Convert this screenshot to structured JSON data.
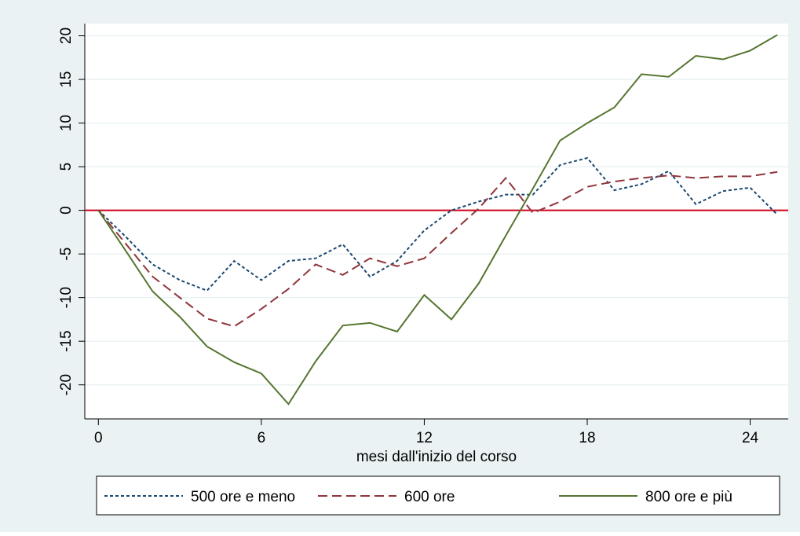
{
  "chart_data": {
    "type": "line",
    "x_label": "mesi dall'inizio del corso",
    "x": [
      0,
      1,
      2,
      3,
      4,
      5,
      6,
      7,
      8,
      9,
      10,
      11,
      12,
      13,
      14,
      15,
      16,
      17,
      18,
      19,
      20,
      21,
      22,
      23,
      24,
      25
    ],
    "series": [
      {
        "name": "500 ore e meno",
        "color": "#1a476f",
        "style": "dotted",
        "values": [
          0,
          -3,
          -6.2,
          -8,
          -9.2,
          -5.8,
          -8,
          -5.8,
          -5.5,
          -3.9,
          -7.6,
          -5.8,
          -2.3,
          0,
          1,
          1.8,
          1.8,
          5.2,
          6,
          2.3,
          3,
          4.5,
          0.7,
          2.2,
          2.6,
          -0.5
        ]
      },
      {
        "name": "600 ore",
        "color": "#90353b",
        "style": "dashed",
        "values": [
          0,
          -3.8,
          -7.6,
          -10,
          -12.4,
          -13.3,
          -11.3,
          -9,
          -6.2,
          -7.4,
          -5.5,
          -6.4,
          -5.5,
          -2.6,
          0.2,
          3.7,
          -0.3,
          1,
          2.7,
          3.3,
          3.7,
          4,
          3.7,
          3.9,
          3.9,
          4.4
        ]
      },
      {
        "name": "800 ore e più",
        "color": "#55752f",
        "style": "solid",
        "values": [
          0,
          -4.6,
          -9.3,
          -12.2,
          -15.6,
          -17.4,
          -18.7,
          -22.2,
          -17.3,
          -13.2,
          -12.9,
          -13.9,
          -9.7,
          -12.5,
          -8.4,
          -2.9,
          2.5,
          8,
          10,
          11.8,
          15.6,
          15.3,
          17.7,
          17.3,
          18.3,
          20.1
        ]
      }
    ],
    "xlim": [
      -0.5,
      25.4
    ],
    "xticks": [
      0,
      6,
      12,
      18,
      24
    ],
    "ylim": [
      -23.9,
      21.4
    ],
    "yticks": [
      -20,
      -15,
      -10,
      -5,
      0,
      5,
      10,
      15,
      20
    ],
    "grid": true,
    "reference_line": {
      "value": 0,
      "color": "#d0021b"
    },
    "legend": "bottom"
  }
}
